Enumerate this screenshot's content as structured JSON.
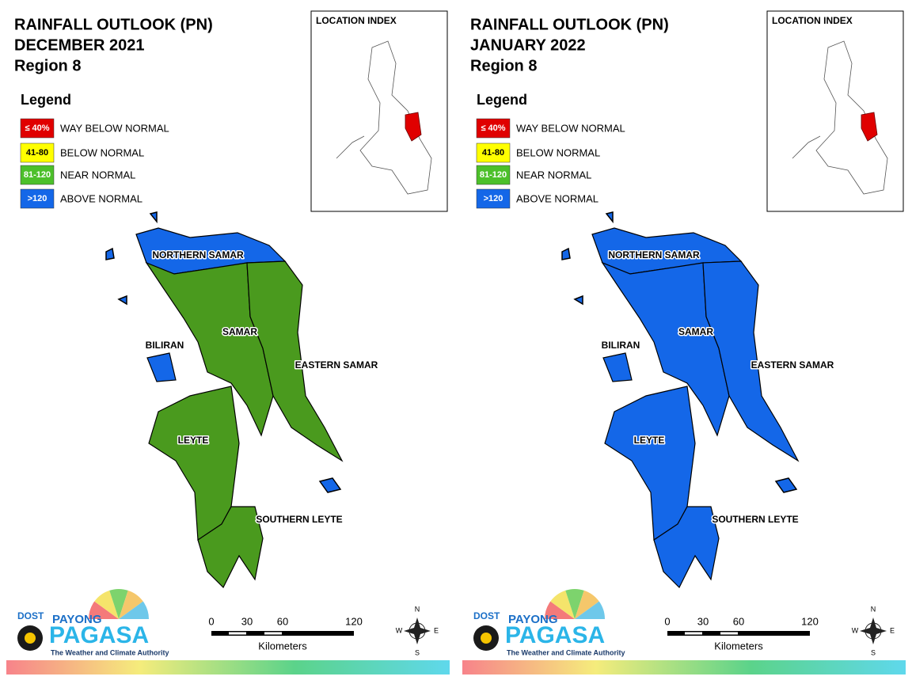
{
  "panels": [
    {
      "title": "RAINFALL OUTLOOK (PN)",
      "period": "DECEMBER 2021",
      "region": "Region 8",
      "legend": {
        "title": "Legend",
        "items": [
          {
            "range": "≤ 40%",
            "label": "WAY BELOW NORMAL",
            "color": "#e00000"
          },
          {
            "range": "41-80",
            "label": "BELOW NORMAL",
            "color": "#ffff00"
          },
          {
            "range": "81-120",
            "label": "NEAR NORMAL",
            "color": "#4cc02a"
          },
          {
            "range": ">120",
            "label": "ABOVE NORMAL",
            "color": "#1467e8"
          }
        ]
      },
      "location_index": "LOCATION INDEX",
      "provinces": [
        {
          "name": "NORTHERN SAMAR",
          "color": "#1467e8"
        },
        {
          "name": "SAMAR",
          "color": "#4a9a1e"
        },
        {
          "name": "EASTERN SAMAR",
          "color": "#4a9a1e"
        },
        {
          "name": "BILIRAN",
          "color": "#1467e8"
        },
        {
          "name": "LEYTE",
          "color": "#4a9a1e"
        },
        {
          "name": "SOUTHERN LEYTE",
          "color": "#4a9a1e"
        }
      ],
      "scale": {
        "ticks": [
          0,
          30,
          60,
          120
        ],
        "unit": "Kilometers"
      },
      "compass": [
        "N",
        "E",
        "S",
        "W"
      ],
      "logo": {
        "agency": "DOST",
        "brand_top": "PAYONG",
        "brand": "PAGASA",
        "tagline": "The Weather and Climate Authority"
      }
    },
    {
      "title": "RAINFALL OUTLOOK (PN)",
      "period": "JANUARY 2022",
      "region": "Region 8",
      "legend": {
        "title": "Legend",
        "items": [
          {
            "range": "≤ 40%",
            "label": "WAY BELOW NORMAL",
            "color": "#e00000"
          },
          {
            "range": "41-80",
            "label": "BELOW NORMAL",
            "color": "#ffff00"
          },
          {
            "range": "81-120",
            "label": "NEAR NORMAL",
            "color": "#4cc02a"
          },
          {
            "range": ">120",
            "label": "ABOVE NORMAL",
            "color": "#1467e8"
          }
        ]
      },
      "location_index": "LOCATION INDEX",
      "provinces": [
        {
          "name": "NORTHERN SAMAR",
          "color": "#1467e8"
        },
        {
          "name": "SAMAR",
          "color": "#1467e8"
        },
        {
          "name": "EASTERN SAMAR",
          "color": "#1467e8"
        },
        {
          "name": "BILIRAN",
          "color": "#1467e8"
        },
        {
          "name": "LEYTE",
          "color": "#1467e8"
        },
        {
          "name": "SOUTHERN LEYTE",
          "color": "#1467e8"
        }
      ],
      "scale": {
        "ticks": [
          0,
          30,
          60,
          120
        ],
        "unit": "Kilometers"
      },
      "compass": [
        "N",
        "E",
        "S",
        "W"
      ],
      "logo": {
        "agency": "DOST",
        "brand_top": "PAYONG",
        "brand": "PAGASA",
        "tagline": "The Weather and Climate Authority"
      }
    }
  ]
}
